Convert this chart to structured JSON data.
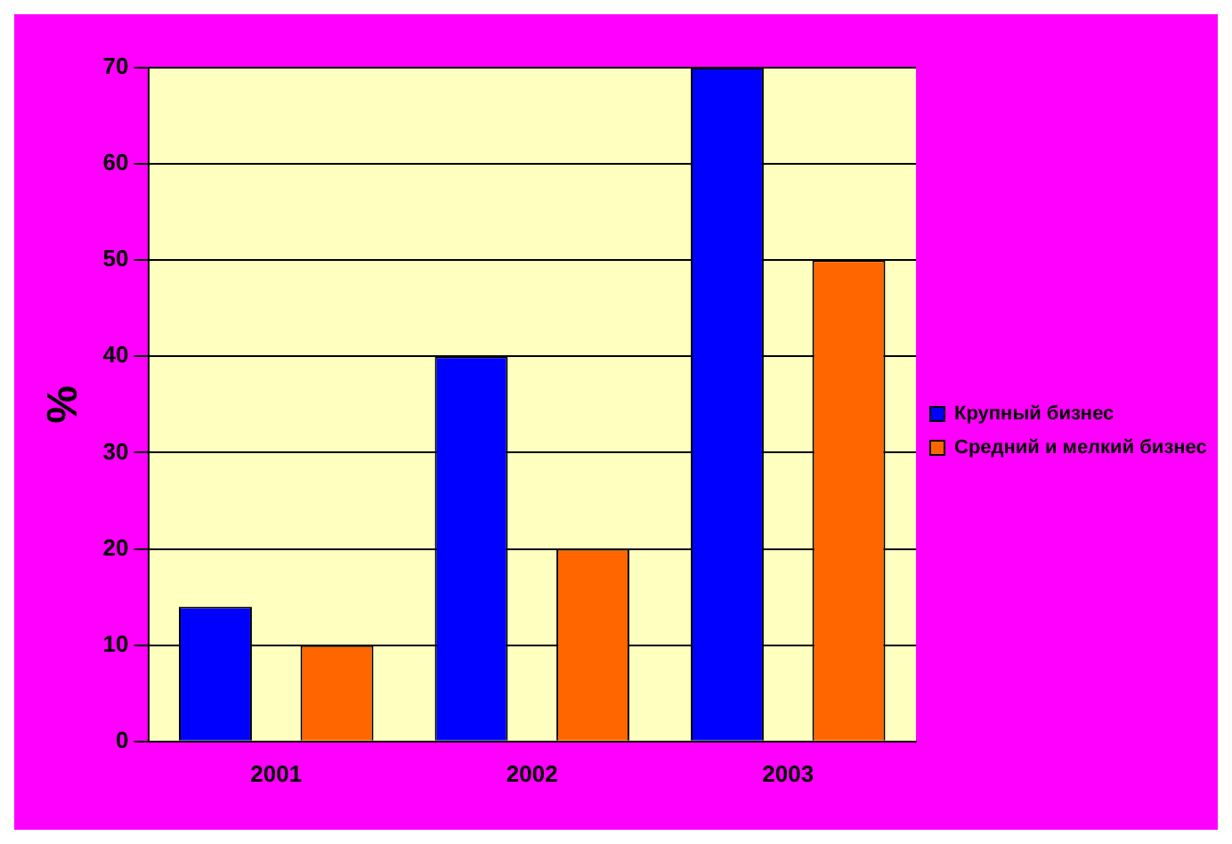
{
  "chart_data": {
    "type": "bar",
    "ylabel": "%",
    "categories": [
      "2001",
      "2002",
      "2003"
    ],
    "series": [
      {
        "name": "Крупный бизнес",
        "color": "#0000ff",
        "values": [
          14,
          40,
          70
        ]
      },
      {
        "name": "Средний и мелкий бизнес",
        "color": "#ff6600",
        "values": [
          10,
          20,
          50
        ]
      }
    ],
    "ylim": [
      0,
      70
    ],
    "yticks": [
      0,
      10,
      20,
      30,
      40,
      50,
      60,
      70
    ],
    "grid": "y",
    "legend": "right"
  }
}
